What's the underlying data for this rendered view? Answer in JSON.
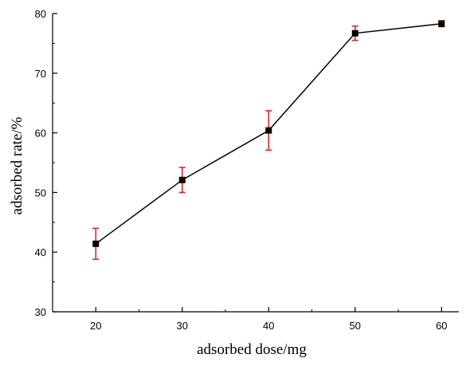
{
  "chart_data": {
    "type": "line",
    "title": "",
    "xlabel": "adsorbed dose/mg",
    "ylabel": "adsorbed rate/%",
    "xlim": [
      15,
      62
    ],
    "ylim": [
      30,
      80
    ],
    "xticks": [
      20,
      30,
      40,
      50,
      60
    ],
    "yticks": [
      30,
      40,
      50,
      60,
      70,
      80
    ],
    "grid": false,
    "legend": "none",
    "series": [
      {
        "x": [
          20,
          30,
          40,
          50,
          60
        ],
        "y": [
          41.4,
          52.1,
          60.4,
          76.7,
          78.3
        ],
        "error": [
          2.6,
          2.1,
          3.3,
          1.2,
          0.5
        ]
      }
    ],
    "colors": {
      "line": "#000000",
      "marker": "#000000",
      "error_bar": "#e8241c",
      "axis": "#000000"
    }
  }
}
